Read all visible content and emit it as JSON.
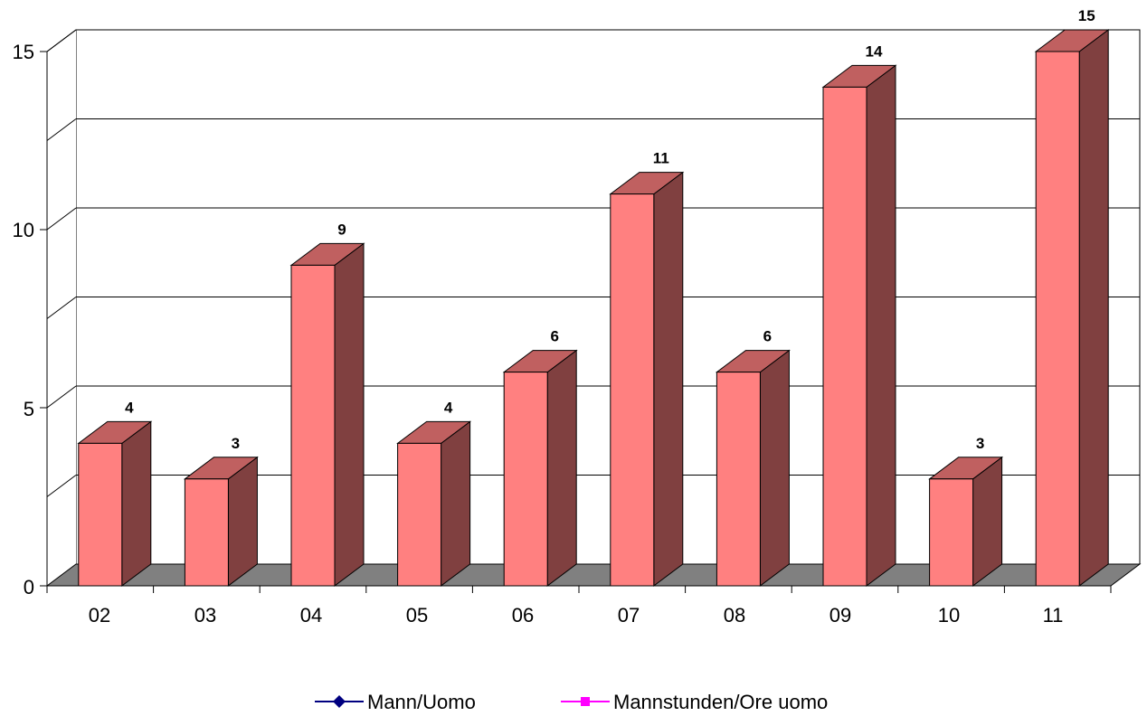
{
  "chart_data": {
    "type": "bar",
    "categories": [
      "02",
      "03",
      "04",
      "05",
      "06",
      "07",
      "08",
      "09",
      "10",
      "11"
    ],
    "values": [
      4,
      3,
      9,
      4,
      6,
      11,
      6,
      14,
      3,
      15
    ],
    "ylim": [
      0,
      15
    ],
    "yticks": [
      "0",
      "5",
      "10",
      "15"
    ],
    "grid": true,
    "legend_position": "bottom",
    "legend": [
      {
        "label": "Mann/Uomo",
        "color": "#000080"
      },
      {
        "label": "Mannstunden/Ore uomo",
        "color": "#FF00FF"
      }
    ],
    "colors": {
      "bar_front": "#FF8080",
      "bar_top": "#C06060",
      "bar_side": "#804040",
      "floor": "#808080"
    }
  }
}
